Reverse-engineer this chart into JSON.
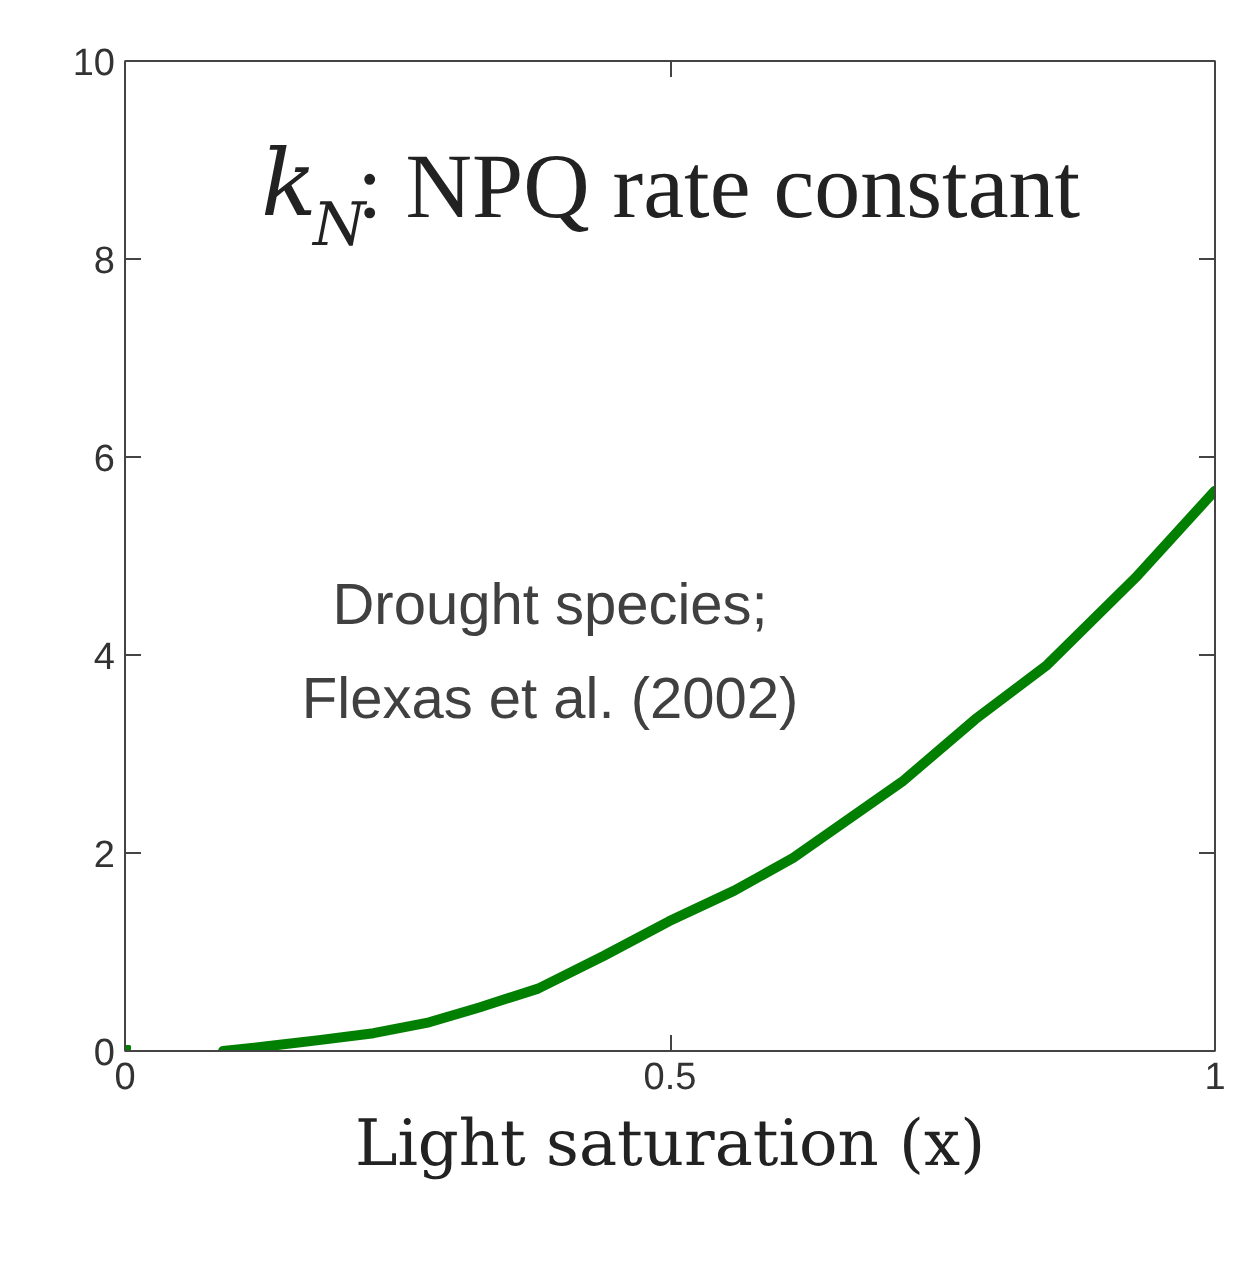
{
  "chart_data": {
    "type": "line",
    "title": "k$_{N}$: NPQ rate constant",
    "xlabel": "Light saturation (x)",
    "annotations": [
      "Drought species;\nFlexas et al. (2002)"
    ],
    "series": [
      {
        "color": "#007f00",
        "x": [
          0.09,
          0.132,
          0.178,
          0.228,
          0.279,
          0.325,
          0.379,
          0.439,
          0.499,
          0.559,
          0.613,
          0.713,
          0.78,
          0.846,
          0.927,
          1.0
        ],
        "values": [
          0,
          0.05,
          0.11,
          0.18,
          0.29,
          0.44,
          0.63,
          0.96,
          1.31,
          1.62,
          1.95,
          2.72,
          3.35,
          3.9,
          4.78,
          5.66
        ]
      },
      {
        "type": "scatter",
        "color": "#007f00",
        "marker": "square",
        "x": [
          0
        ],
        "values": [
          0
        ]
      }
    ],
    "xlim": [
      0,
      1
    ],
    "ylim": [
      0,
      10
    ],
    "xticks": [
      0,
      0.5,
      1
    ],
    "yticks": [
      0,
      2,
      4,
      6,
      8,
      10
    ],
    "grid": false
  }
}
